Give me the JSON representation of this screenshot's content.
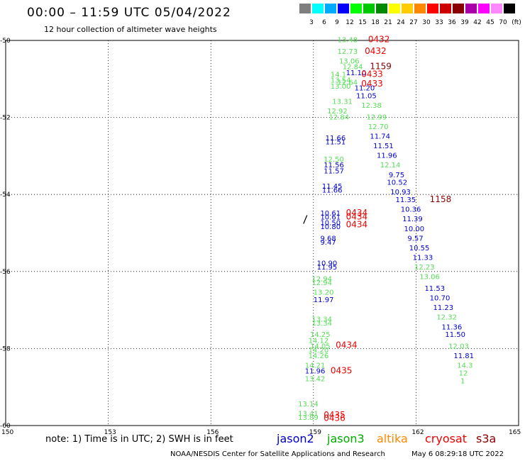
{
  "header": {
    "title": "00:00 – 11:59 UTC 05/04/2022",
    "subtitle": "12 hour collection of altimeter wave heights"
  },
  "legend": {
    "unit": "(ft)",
    "swatches": [
      {
        "color": "#7f7f7f",
        "label": "3"
      },
      {
        "color": "#00ffff",
        "label": "6"
      },
      {
        "color": "#00aaff",
        "label": "9"
      },
      {
        "color": "#0000ff",
        "label": "12"
      },
      {
        "color": "#00ff00",
        "label": "15"
      },
      {
        "color": "#00c800",
        "label": "18"
      },
      {
        "color": "#008800",
        "label": "21"
      },
      {
        "color": "#ffff00",
        "label": "24"
      },
      {
        "color": "#ffcc00",
        "label": "27"
      },
      {
        "color": "#ff8800",
        "label": "30"
      },
      {
        "color": "#ff0000",
        "label": "33"
      },
      {
        "color": "#cc0000",
        "label": "36"
      },
      {
        "color": "#880000",
        "label": "39"
      },
      {
        "color": "#aa00aa",
        "label": "42"
      },
      {
        "color": "#ff00ff",
        "label": "45"
      },
      {
        "color": "#ff88ff",
        "label": "70"
      },
      {
        "color": "#000000",
        "label": ""
      }
    ]
  },
  "map": {
    "lon_range": [
      150,
      165
    ],
    "lat_range": [
      -60,
      -50
    ],
    "x_ticks": [
      "150",
      "153",
      "156",
      "159",
      "162",
      "165"
    ],
    "y_ticks": [
      "-50",
      "-52",
      "-54",
      "-56",
      "-58",
      "-60"
    ],
    "colors": {
      "jason2": "#0000cc",
      "jason3": "#55dd55",
      "altika": "#ff8800",
      "cryosat": "#ee0000",
      "s3a": "#880000"
    },
    "labels": [
      {
        "text": "13.48",
        "lon": 159.7,
        "lat": -50.05,
        "sat": "jason3"
      },
      {
        "text": "0432",
        "lon": 160.6,
        "lat": -50.05,
        "sat": "cryosat"
      },
      {
        "text": "12.73",
        "lon": 159.7,
        "lat": -50.35,
        "sat": "jason3"
      },
      {
        "text": "0432",
        "lon": 160.5,
        "lat": -50.35,
        "sat": "cryosat"
      },
      {
        "text": "13.06",
        "lon": 159.75,
        "lat": -50.6,
        "sat": "jason3"
      },
      {
        "text": "12.84",
        "lon": 159.85,
        "lat": -50.75,
        "sat": "jason3"
      },
      {
        "text": "1159",
        "lon": 160.65,
        "lat": -50.75,
        "sat": "s3a"
      },
      {
        "text": "14.1",
        "lon": 159.5,
        "lat": -50.95,
        "sat": "jason3"
      },
      {
        "text": "11.10",
        "lon": 159.95,
        "lat": -50.9,
        "sat": "jason2"
      },
      {
        "text": "0433",
        "lon": 160.4,
        "lat": -50.95,
        "sat": "cryosat"
      },
      {
        "text": "13.54",
        "lon": 159.5,
        "lat": -51.1,
        "sat": "jason3"
      },
      {
        "text": "12.64",
        "lon": 159.7,
        "lat": -51.15,
        "sat": "jason3"
      },
      {
        "text": "0433",
        "lon": 160.4,
        "lat": -51.2,
        "sat": "cryosat"
      },
      {
        "text": "13.00",
        "lon": 159.5,
        "lat": -51.25,
        "sat": "jason3"
      },
      {
        "text": "11.20",
        "lon": 160.2,
        "lat": -51.3,
        "sat": "jason2"
      },
      {
        "text": "11.05",
        "lon": 160.25,
        "lat": -51.5,
        "sat": "jason2"
      },
      {
        "text": "13.31",
        "lon": 159.55,
        "lat": -51.65,
        "sat": "jason3"
      },
      {
        "text": "12.38",
        "lon": 160.4,
        "lat": -51.75,
        "sat": "jason3"
      },
      {
        "text": "12.92",
        "lon": 159.4,
        "lat": -51.9,
        "sat": "jason3"
      },
      {
        "text": "12.84",
        "lon": 159.45,
        "lat": -52.05,
        "sat": "jason3"
      },
      {
        "text": "12.99",
        "lon": 160.55,
        "lat": -52.05,
        "sat": "jason3"
      },
      {
        "text": "12.70",
        "lon": 160.6,
        "lat": -52.3,
        "sat": "jason3"
      },
      {
        "text": "11.66",
        "lon": 159.35,
        "lat": -52.6,
        "sat": "jason2"
      },
      {
        "text": "11.51",
        "lon": 159.35,
        "lat": -52.7,
        "sat": "jason2"
      },
      {
        "text": "11.74",
        "lon": 160.65,
        "lat": -52.55,
        "sat": "jason2"
      },
      {
        "text": "11.51",
        "lon": 160.75,
        "lat": -52.8,
        "sat": "jason2"
      },
      {
        "text": "12.50",
        "lon": 159.3,
        "lat": -53.15,
        "sat": "jason3"
      },
      {
        "text": "11.96",
        "lon": 160.85,
        "lat": -53.05,
        "sat": "jason2"
      },
      {
        "text": "11.56",
        "lon": 159.3,
        "lat": -53.3,
        "sat": "jason2"
      },
      {
        "text": "11.57",
        "lon": 159.3,
        "lat": -53.45,
        "sat": "jason2"
      },
      {
        "text": "12.14",
        "lon": 160.95,
        "lat": -53.3,
        "sat": "jason3"
      },
      {
        "text": "9.75",
        "lon": 161.2,
        "lat": -53.55,
        "sat": "jason2"
      },
      {
        "text": "10.52",
        "lon": 161.15,
        "lat": -53.75,
        "sat": "jason2"
      },
      {
        "text": "11.45",
        "lon": 159.25,
        "lat": -53.85,
        "sat": "jason2"
      },
      {
        "text": "11.66",
        "lon": 159.25,
        "lat": -53.95,
        "sat": "jason2"
      },
      {
        "text": "10.93",
        "lon": 161.25,
        "lat": -54.0,
        "sat": "jason2"
      },
      {
        "text": "11.35",
        "lon": 161.4,
        "lat": -54.2,
        "sat": "jason2"
      },
      {
        "text": "1158",
        "lon": 162.4,
        "lat": -54.2,
        "sat": "s3a"
      },
      {
        "text": "10.36",
        "lon": 161.55,
        "lat": -54.45,
        "sat": "jason2"
      },
      {
        "text": "10.61",
        "lon": 159.2,
        "lat": -54.55,
        "sat": "jason2"
      },
      {
        "text": "0434",
        "lon": 159.95,
        "lat": -54.55,
        "sat": "cryosat"
      },
      {
        "text": "10.61",
        "lon": 159.2,
        "lat": -54.65,
        "sat": "jason2"
      },
      {
        "text": "0434",
        "lon": 159.95,
        "lat": -54.65,
        "sat": "cryosat"
      },
      {
        "text": "11.39",
        "lon": 161.6,
        "lat": -54.7,
        "sat": "jason2"
      },
      {
        "text": "10.50",
        "lon": 159.2,
        "lat": -54.8,
        "sat": "jason2"
      },
      {
        "text": "10.80",
        "lon": 159.2,
        "lat": -54.9,
        "sat": "jason2"
      },
      {
        "text": "0434",
        "lon": 159.95,
        "lat": -54.85,
        "sat": "cryosat"
      },
      {
        "text": "10.00",
        "lon": 161.65,
        "lat": -54.95,
        "sat": "jason2"
      },
      {
        "text": "9.68",
        "lon": 159.2,
        "lat": -55.2,
        "sat": "jason2"
      },
      {
        "text": "9.57",
        "lon": 161.75,
        "lat": -55.2,
        "sat": "jason2"
      },
      {
        "text": "9.47",
        "lon": 159.2,
        "lat": -55.3,
        "sat": "jason2"
      },
      {
        "text": "10.55",
        "lon": 161.8,
        "lat": -55.45,
        "sat": "jason2"
      },
      {
        "text": "11.33",
        "lon": 161.9,
        "lat": -55.7,
        "sat": "jason2"
      },
      {
        "text": "10.90",
        "lon": 159.1,
        "lat": -55.85,
        "sat": "jason2"
      },
      {
        "text": "11.95",
        "lon": 159.1,
        "lat": -55.95,
        "sat": "jason2"
      },
      {
        "text": "12.23",
        "lon": 161.95,
        "lat": -55.95,
        "sat": "jason3"
      },
      {
        "text": "13.06",
        "lon": 162.1,
        "lat": -56.2,
        "sat": "jason3"
      },
      {
        "text": "12.94",
        "lon": 158.95,
        "lat": -56.25,
        "sat": "jason3"
      },
      {
        "text": "12.94",
        "lon": 158.95,
        "lat": -56.35,
        "sat": "jason3"
      },
      {
        "text": "11.53",
        "lon": 162.25,
        "lat": -56.5,
        "sat": "jason2"
      },
      {
        "text": "13.20",
        "lon": 159.0,
        "lat": -56.6,
        "sat": "jason3"
      },
      {
        "text": "10.70",
        "lon": 162.4,
        "lat": -56.75,
        "sat": "jason2"
      },
      {
        "text": "11.97",
        "lon": 159.0,
        "lat": -56.8,
        "sat": "jason2"
      },
      {
        "text": "11.23",
        "lon": 162.5,
        "lat": -57.0,
        "sat": "jason2"
      },
      {
        "text": "12.32",
        "lon": 162.6,
        "lat": -57.25,
        "sat": "jason3"
      },
      {
        "text": "13.34",
        "lon": 158.95,
        "lat": -57.3,
        "sat": "jason3"
      },
      {
        "text": "13.34",
        "lon": 158.95,
        "lat": -57.4,
        "sat": "jason3"
      },
      {
        "text": "11.36",
        "lon": 162.75,
        "lat": -57.5,
        "sat": "jason2"
      },
      {
        "text": "14.25",
        "lon": 158.9,
        "lat": -57.7,
        "sat": "jason3"
      },
      {
        "text": "11.50",
        "lon": 162.85,
        "lat": -57.7,
        "sat": "jason2"
      },
      {
        "text": "14.12",
        "lon": 158.85,
        "lat": -57.85,
        "sat": "jason3"
      },
      {
        "text": "14.05",
        "lon": 158.9,
        "lat": -58.0,
        "sat": "jason3"
      },
      {
        "text": "0434",
        "lon": 159.65,
        "lat": -57.98,
        "sat": "cryosat"
      },
      {
        "text": "14.20",
        "lon": 158.85,
        "lat": -58.1,
        "sat": "jason3"
      },
      {
        "text": "12.03",
        "lon": 162.95,
        "lat": -58.0,
        "sat": "jason3"
      },
      {
        "text": "14.26",
        "lon": 158.85,
        "lat": -58.25,
        "sat": "jason3"
      },
      {
        "text": "11.81",
        "lon": 163.1,
        "lat": -58.25,
        "sat": "jason2"
      },
      {
        "text": "14.21",
        "lon": 158.75,
        "lat": -58.5,
        "sat": "jason3"
      },
      {
        "text": "14.3",
        "lon": 163.2,
        "lat": -58.5,
        "sat": "jason3"
      },
      {
        "text": "11.96",
        "lon": 158.75,
        "lat": -58.65,
        "sat": "jason2"
      },
      {
        "text": "0435",
        "lon": 159.5,
        "lat": -58.65,
        "sat": "cryosat"
      },
      {
        "text": "12",
        "lon": 163.25,
        "lat": -58.7,
        "sat": "jason3"
      },
      {
        "text": "13.42",
        "lon": 158.75,
        "lat": -58.85,
        "sat": "jason3"
      },
      {
        "text": "1",
        "lon": 163.3,
        "lat": -58.9,
        "sat": "jason3"
      },
      {
        "text": "13.14",
        "lon": 158.55,
        "lat": -59.5,
        "sat": "jason3"
      },
      {
        "text": "13.41",
        "lon": 158.55,
        "lat": -59.75,
        "sat": "jason3"
      },
      {
        "text": "13.89",
        "lon": 158.55,
        "lat": -59.85,
        "sat": "jason3"
      },
      {
        "text": "0435",
        "lon": 159.3,
        "lat": -59.8,
        "sat": "cryosat"
      },
      {
        "text": "0436",
        "lon": 159.3,
        "lat": -59.88,
        "sat": "cryosat"
      }
    ]
  },
  "footer": {
    "note": "note:  1) Time is in UTC;  2) SWH is in feet",
    "satellites": [
      {
        "name": "jason2",
        "color": "#0000cc"
      },
      {
        "name": "jason3",
        "color": "#00aa00"
      },
      {
        "name": "altika",
        "color": "#ff8800"
      },
      {
        "name": "cryosat",
        "color": "#ee0000"
      },
      {
        "name": "s3a",
        "color": "#880000"
      }
    ],
    "credit": "NOAA/NESDIS Center for Satellite Applications and Research",
    "timestamp": "May  6 08:29:18 UTC 2022"
  }
}
